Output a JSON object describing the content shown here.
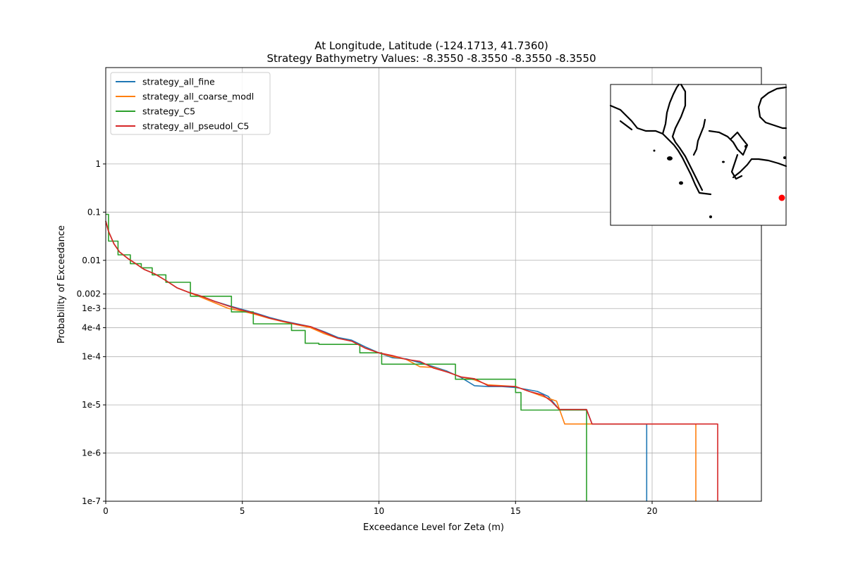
{
  "chart_data": {
    "type": "line",
    "title": "At Longitude, Latitude (-124.1713,  41.7360)",
    "subtitle": "Strategy Bathymetry Values:   -8.3550   -8.3550   -8.3550   -8.3550",
    "xlabel": "Exceedance Level for Zeta (m)",
    "ylabel": "Probability of Exceedance",
    "xlim": [
      0,
      24
    ],
    "ylim": [
      1e-07,
      100
    ],
    "yscale": "log",
    "grid": true,
    "legend_position": "top-left",
    "x_ticks": [
      {
        "value": 0,
        "label": "0"
      },
      {
        "value": 5,
        "label": "5"
      },
      {
        "value": 10,
        "label": "10"
      },
      {
        "value": 15,
        "label": "15"
      },
      {
        "value": 20,
        "label": "20"
      }
    ],
    "y_ticks": [
      {
        "value": 1,
        "label": "1"
      },
      {
        "value": 0.1,
        "label": "0.1"
      },
      {
        "value": 0.01,
        "label": "0.01"
      },
      {
        "value": 0.002,
        "label": "0.002"
      },
      {
        "value": 0.001,
        "label": "1e-3"
      },
      {
        "value": 0.0004,
        "label": "4e-4"
      },
      {
        "value": 0.0001,
        "label": "1e-4"
      },
      {
        "value": 1e-05,
        "label": "1e-5"
      },
      {
        "value": 1e-06,
        "label": "1e-6"
      },
      {
        "value": 1e-07,
        "label": "1e-7"
      }
    ],
    "series": [
      {
        "name": "strategy_all_fine",
        "color": "#1f77b4",
        "step": false,
        "points": [
          [
            0,
            0.065
          ],
          [
            0.1,
            0.04
          ],
          [
            0.3,
            0.022
          ],
          [
            0.5,
            0.015
          ],
          [
            0.8,
            0.011
          ],
          [
            1.1,
            0.0085
          ],
          [
            1.4,
            0.0065
          ],
          [
            1.8,
            0.0052
          ],
          [
            2.2,
            0.0038
          ],
          [
            2.6,
            0.0027
          ],
          [
            3.0,
            0.0022
          ],
          [
            3.5,
            0.0018
          ],
          [
            4.0,
            0.0014
          ],
          [
            4.5,
            0.00115
          ],
          [
            5.0,
            0.00095
          ],
          [
            5.5,
            0.0008
          ],
          [
            6.0,
            0.00065
          ],
          [
            6.5,
            0.00055
          ],
          [
            7.0,
            0.00048
          ],
          [
            7.5,
            0.00042
          ],
          [
            8.0,
            0.00033
          ],
          [
            8.5,
            0.00025
          ],
          [
            9.0,
            0.00022
          ],
          [
            9.5,
            0.00016
          ],
          [
            10.0,
            0.00012
          ],
          [
            10.5,
            9.5e-05
          ],
          [
            11.0,
            9e-05
          ],
          [
            11.5,
            7.5e-05
          ],
          [
            12.0,
            6.2e-05
          ],
          [
            12.5,
            5e-05
          ],
          [
            13.0,
            3.7e-05
          ],
          [
            13.5,
            2.5e-05
          ],
          [
            14.0,
            2.4e-05
          ],
          [
            14.5,
            2.4e-05
          ],
          [
            15.0,
            2.3e-05
          ],
          [
            15.8,
            1.9e-05
          ],
          [
            16.2,
            1.5e-05
          ],
          [
            16.6,
            8e-06
          ],
          [
            17.0,
            8e-06
          ],
          [
            17.6,
            8e-06
          ],
          [
            17.8,
            4e-06
          ],
          [
            19.8,
            4e-06
          ],
          [
            19.8,
            1e-07
          ]
        ]
      },
      {
        "name": "strategy_all_coarse_modl",
        "color": "#ff7f0e",
        "step": false,
        "points": [
          [
            0,
            0.065
          ],
          [
            0.1,
            0.04
          ],
          [
            0.3,
            0.022
          ],
          [
            0.5,
            0.015
          ],
          [
            0.8,
            0.011
          ],
          [
            1.1,
            0.0085
          ],
          [
            1.4,
            0.0065
          ],
          [
            1.8,
            0.0052
          ],
          [
            2.2,
            0.0038
          ],
          [
            2.6,
            0.0027
          ],
          [
            3.0,
            0.0022
          ],
          [
            3.5,
            0.0017
          ],
          [
            4.0,
            0.0013
          ],
          [
            4.5,
            0.001
          ],
          [
            5.0,
            0.00088
          ],
          [
            5.5,
            0.00075
          ],
          [
            6.0,
            0.00062
          ],
          [
            6.5,
            0.00053
          ],
          [
            7.0,
            0.00046
          ],
          [
            7.5,
            0.0004
          ],
          [
            8.0,
            0.0003
          ],
          [
            8.5,
            0.00024
          ],
          [
            9.0,
            0.00021
          ],
          [
            9.5,
            0.00015
          ],
          [
            10.0,
            0.00012
          ],
          [
            10.5,
            0.0001
          ],
          [
            11.0,
            8.8e-05
          ],
          [
            11.5,
            6.2e-05
          ],
          [
            12.0,
            6e-05
          ],
          [
            12.5,
            4.8e-05
          ],
          [
            13.0,
            3.8e-05
          ],
          [
            13.5,
            3.3e-05
          ],
          [
            14.0,
            2.6e-05
          ],
          [
            15.0,
            2.4e-05
          ],
          [
            15.5,
            1.9e-05
          ],
          [
            16.0,
            1.5e-05
          ],
          [
            16.5,
            1.2e-05
          ],
          [
            16.8,
            4e-06
          ],
          [
            21.6,
            4e-06
          ],
          [
            21.6,
            1e-07
          ]
        ]
      },
      {
        "name": "strategy_C5",
        "color": "#2ca02c",
        "step": true,
        "points": [
          [
            0,
            0.09
          ],
          [
            0.1,
            0.09
          ],
          [
            0.1,
            0.025
          ],
          [
            0.45,
            0.025
          ],
          [
            0.45,
            0.013
          ],
          [
            0.9,
            0.013
          ],
          [
            0.9,
            0.0085
          ],
          [
            1.3,
            0.0085
          ],
          [
            1.3,
            0.007
          ],
          [
            1.7,
            0.007
          ],
          [
            1.7,
            0.005
          ],
          [
            2.2,
            0.005
          ],
          [
            2.2,
            0.0035
          ],
          [
            3.1,
            0.0035
          ],
          [
            3.1,
            0.0018
          ],
          [
            4.6,
            0.0018
          ],
          [
            4.6,
            0.00085
          ],
          [
            5.4,
            0.00085
          ],
          [
            5.4,
            0.00048
          ],
          [
            6.8,
            0.00048
          ],
          [
            6.8,
            0.00035
          ],
          [
            7.3,
            0.00035
          ],
          [
            7.3,
            0.00019
          ],
          [
            7.8,
            0.00019
          ],
          [
            7.8,
            0.00018
          ],
          [
            9.3,
            0.00018
          ],
          [
            9.3,
            0.00012
          ],
          [
            10.1,
            0.00012
          ],
          [
            10.1,
            7e-05
          ],
          [
            12.8,
            7e-05
          ],
          [
            12.8,
            3.4e-05
          ],
          [
            15.0,
            3.4e-05
          ],
          [
            15.0,
            1.8e-05
          ],
          [
            15.2,
            1.8e-05
          ],
          [
            15.2,
            7.8e-06
          ],
          [
            17.6,
            7.8e-06
          ],
          [
            17.6,
            1e-07
          ]
        ]
      },
      {
        "name": "strategy_all_pseudol_C5",
        "color": "#d62728",
        "step": false,
        "points": [
          [
            0,
            0.065
          ],
          [
            0.1,
            0.04
          ],
          [
            0.3,
            0.022
          ],
          [
            0.5,
            0.015
          ],
          [
            0.8,
            0.011
          ],
          [
            1.1,
            0.0085
          ],
          [
            1.4,
            0.0065
          ],
          [
            1.8,
            0.0052
          ],
          [
            2.2,
            0.0038
          ],
          [
            2.6,
            0.0027
          ],
          [
            3.0,
            0.0022
          ],
          [
            3.5,
            0.0018
          ],
          [
            4.0,
            0.0014
          ],
          [
            4.5,
            0.00112
          ],
          [
            5.0,
            0.00092
          ],
          [
            5.5,
            0.00078
          ],
          [
            6.0,
            0.00063
          ],
          [
            6.5,
            0.00054
          ],
          [
            7.0,
            0.00047
          ],
          [
            7.5,
            0.00042
          ],
          [
            8.0,
            0.00032
          ],
          [
            8.5,
            0.00024
          ],
          [
            9.0,
            0.00021
          ],
          [
            9.5,
            0.00015
          ],
          [
            10.0,
            0.00012
          ],
          [
            10.5,
            0.000105
          ],
          [
            11.0,
            8.8e-05
          ],
          [
            11.5,
            8e-05
          ],
          [
            12.0,
            5.8e-05
          ],
          [
            12.5,
            4.8e-05
          ],
          [
            13.0,
            3.8e-05
          ],
          [
            13.5,
            3.5e-05
          ],
          [
            14.0,
            2.5e-05
          ],
          [
            15.0,
            2.4e-05
          ],
          [
            15.5,
            1.9e-05
          ],
          [
            16.0,
            1.6e-05
          ],
          [
            16.3,
            1.2e-05
          ],
          [
            16.6,
            8e-06
          ],
          [
            17.6,
            8e-06
          ],
          [
            17.8,
            4e-06
          ],
          [
            22.4,
            4e-06
          ],
          [
            22.4,
            1e-07
          ]
        ]
      }
    ]
  },
  "inset_map": {
    "marker_color": "#ff0000",
    "coast_color": "#000000"
  }
}
